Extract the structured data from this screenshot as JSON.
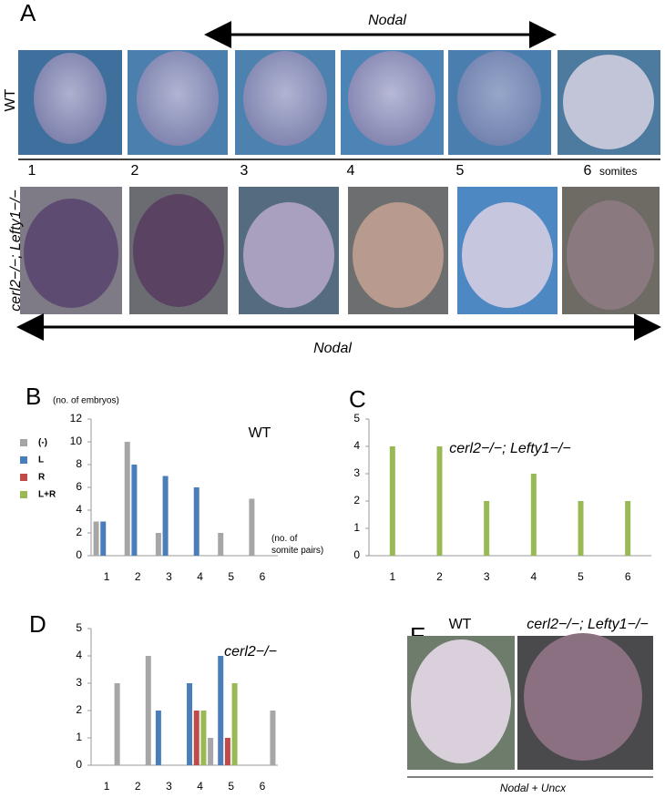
{
  "panels": {
    "A": {
      "label": "A",
      "top_arrow_label": "Nodal",
      "row1_label": "WT",
      "row2_label": "cerl2−/−; Lefty1−/−",
      "stages": [
        "1",
        "2",
        "3",
        "4",
        "5",
        "6"
      ],
      "stage_unit": "somites",
      "bottom_arrow_label": "Nodal"
    },
    "E": {
      "label": "E",
      "left_label": "WT",
      "right_label": "cerl2−/−; Lefty1−/−",
      "caption": "Nodal + Uncx"
    }
  },
  "chart_data": [
    {
      "type": "bar",
      "panel": "B",
      "title": "WT",
      "ylabel": "(no. of embryos)",
      "xlabel": "(no. of somite pairs)",
      "categories": [
        "1",
        "2",
        "3",
        "4",
        "5",
        "6"
      ],
      "series": [
        {
          "name": "(-)",
          "color": "#a6a6a6",
          "values": [
            3,
            10,
            2,
            0,
            2,
            5
          ]
        },
        {
          "name": "L",
          "color": "#4a7ebb",
          "values": [
            3,
            8,
            7,
            6,
            0,
            0
          ]
        },
        {
          "name": "R",
          "color": "#be4b48",
          "values": [
            0,
            0,
            0,
            0,
            0,
            0
          ]
        },
        {
          "name": "L+R",
          "color": "#98b954",
          "values": [
            0,
            0,
            0,
            0,
            0,
            0
          ]
        }
      ],
      "ylim": [
        0,
        12
      ],
      "yticks": [
        0,
        2,
        4,
        6,
        8,
        10,
        12
      ],
      "legend": "left"
    },
    {
      "type": "bar",
      "panel": "C",
      "title": "cerl2−/−; Lefty1−/−",
      "categories": [
        "1",
        "2",
        "3",
        "4",
        "5",
        "6"
      ],
      "series": [
        {
          "color": "#98b954",
          "values": [
            4,
            4,
            2,
            3,
            2,
            2
          ]
        }
      ],
      "ylim": [
        0,
        5
      ],
      "yticks": [
        0,
        1,
        2,
        3,
        4,
        5
      ]
    },
    {
      "type": "bar",
      "panel": "D",
      "title": "cerl2−/−",
      "categories": [
        "1",
        "2",
        "3",
        "4",
        "5",
        "6"
      ],
      "series": [
        {
          "color": "#4a7ebb",
          "values": [
            0,
            0,
            2,
            3,
            4,
            0
          ]
        },
        {
          "color": "#be4b48",
          "values": [
            0,
            0,
            0,
            2,
            1,
            0
          ]
        },
        {
          "color": "#98b954",
          "values": [
            0,
            0,
            0,
            2,
            3,
            0
          ]
        },
        {
          "color": "#a6a6a6",
          "values": [
            3,
            4,
            0,
            1,
            0,
            2
          ]
        }
      ],
      "ylim": [
        0,
        5
      ],
      "yticks": [
        0,
        1,
        2,
        3,
        4,
        5
      ]
    }
  ]
}
